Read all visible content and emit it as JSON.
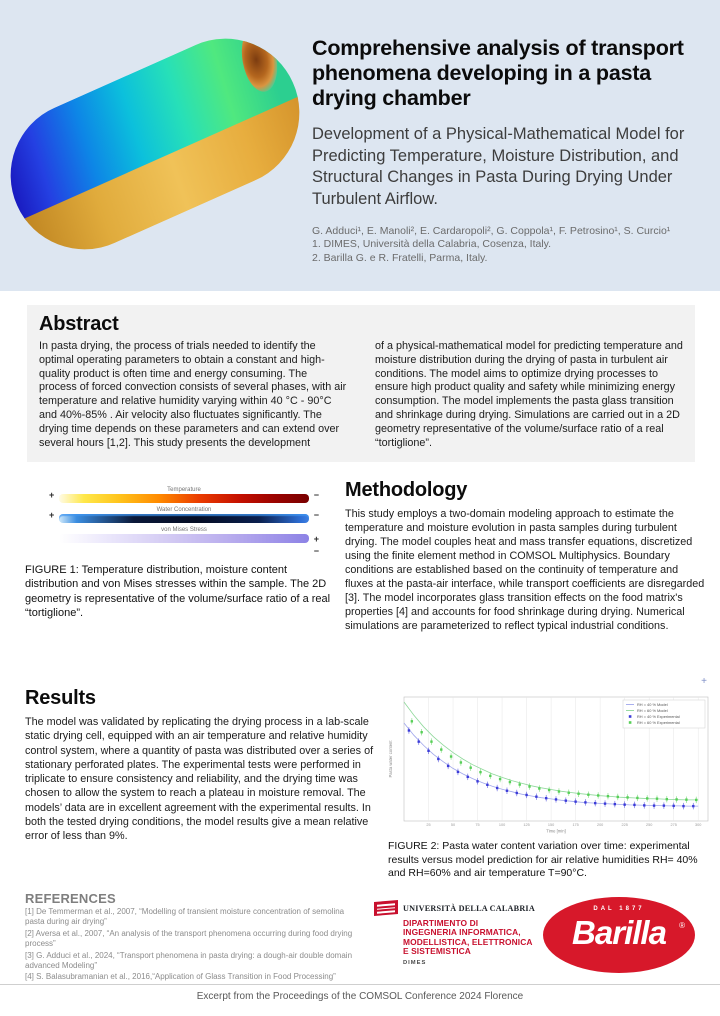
{
  "header": {
    "title": "Comprehensive analysis of transport phenomena developing in a pasta drying chamber",
    "subtitle": "Development of a Physical-Mathematical Model for Predicting Temperature, Moisture Distribution, and Structural Changes in Pasta During Drying Under Turbulent Airflow.",
    "authors": "G. Adduci¹, E. Manoli², E. Cardaropoli², G. Coppola¹, F. Petrosino¹, S. Curcio¹",
    "affiliation1": "1. DIMES, Università della Calabria, Cosenza, Italy.",
    "affiliation2": "2. Barilla G. e R. Fratelli, Parma, Italy."
  },
  "abstract": {
    "heading": "Abstract",
    "col1": "In pasta drying, the process of trials needed to identify the optimal operating parameters to obtain a constant and high-quality product is often time and energy consuming. The process of forced convection consists of several phases, with air temperature and relative humidity varying within 40 °C - 90°C and 40%-85% . Air velocity also fluctuates significantly. The drying time depends on these parameters and can extend over several hours [1,2]. This study presents the development",
    "col2": "of a physical-mathematical model for predicting temperature and moisture distribution during the drying of pasta in turbulent air conditions. The model aims to optimize drying processes to ensure high product quality and safety while minimizing energy consumption. The model implements the pasta glass transition and shrinkage during drying. Simulations are carried out in a 2D geometry representative of the volume/surface ratio of a real “tortiglione”."
  },
  "figure1": {
    "plus": "+",
    "minus": "−",
    "bars": [
      {
        "label": "Temperature"
      },
      {
        "label": "Water Concentration"
      },
      {
        "label": "von Mises Stress"
      }
    ],
    "caption": "FIGURE 1: Temperature distribution, moisture content distribution and von Mises stresses within the sample. The 2D geometry is representative of the volume/surface ratio of a real “tortiglione”."
  },
  "methodology": {
    "heading": "Methodology",
    "body": "This study employs a two-domain modeling approach to estimate the temperature and moisture evolution in pasta samples during turbulent drying. The model couples heat and mass transfer equations, discretized using the finite element method in COMSOL Multiphysics. Boundary conditions are established based on the continuity of temperature and fluxes at the pasta-air interface, while transport coefficients are disregarded [3]. The model incorporates glass transition effects on the food matrix's properties [4] and accounts for food shrinkage during drying. Numerical simulations are parameterized to reflect typical industrial conditions."
  },
  "results": {
    "heading": "Results",
    "body": "The model was validated by replicating the drying process in a lab-scale static drying cell, equipped with an air temperature and relative humidity control system, where a quantity of pasta was distributed over a series of stationary perforated plates. The experimental tests were performed in triplicate to ensure consistency and reliability, and the drying time was chosen to allow the system to reach a plateau in moisture removal. The models’ data are in excellent agreement with the experimental results. In both the tested drying conditions, the model results give a mean relative error of less than 9%."
  },
  "figure2": {
    "zoom_icon": "+",
    "caption": "FIGURE 2:  Pasta water content variation over time: experimental results versus model prediction for air relative humidities RH= 40% and RH=60% and air temperature T=90°C."
  },
  "chart_data": {
    "type": "scatter",
    "title": "",
    "xlabel": "Time [min]",
    "ylabel": "Pasta water content",
    "xlim": [
      0,
      310
    ],
    "ylim": [
      0.05,
      0.55
    ],
    "x_ticks": [
      25,
      50,
      75,
      100,
      125,
      150,
      175,
      200,
      225,
      250,
      275,
      300
    ],
    "grid": "vertical",
    "legend_position": "top-right",
    "series": [
      {
        "name": "RH = 40 % Model",
        "type": "line",
        "color": "#a0a6ec",
        "x": [
          0,
          10,
          20,
          30,
          40,
          50,
          60,
          70,
          80,
          90,
          100,
          110,
          120,
          130,
          140,
          150,
          160,
          170,
          180,
          190,
          200,
          210,
          220,
          230,
          240,
          250,
          260,
          270,
          280,
          290,
          300
        ],
        "y": [
          0.445,
          0.396,
          0.355,
          0.319,
          0.289,
          0.262,
          0.24,
          0.221,
          0.204,
          0.19,
          0.178,
          0.168,
          0.158,
          0.151,
          0.144,
          0.139,
          0.134,
          0.13,
          0.126,
          0.123,
          0.121,
          0.119,
          0.117,
          0.115,
          0.114,
          0.113,
          0.112,
          0.111,
          0.111,
          0.11,
          0.11
        ]
      },
      {
        "name": "RH = 60 % Model",
        "type": "line",
        "color": "#8ed89a",
        "x": [
          0,
          10,
          20,
          30,
          40,
          50,
          60,
          70,
          80,
          90,
          100,
          110,
          120,
          130,
          140,
          150,
          160,
          170,
          180,
          190,
          200,
          210,
          220,
          230,
          240,
          250,
          260,
          270,
          280,
          290,
          300
        ],
        "y": [
          0.53,
          0.477,
          0.43,
          0.39,
          0.356,
          0.326,
          0.3,
          0.277,
          0.258,
          0.24,
          0.226,
          0.213,
          0.202,
          0.192,
          0.184,
          0.177,
          0.17,
          0.165,
          0.16,
          0.156,
          0.152,
          0.149,
          0.146,
          0.144,
          0.142,
          0.14,
          0.139,
          0.137,
          0.136,
          0.135,
          0.135
        ]
      },
      {
        "name": "RH = 40 % Experimental",
        "type": "scatter",
        "color": "#3b3bd8",
        "error": 0.013,
        "x": [
          5,
          15,
          25,
          35,
          45,
          55,
          65,
          75,
          85,
          95,
          105,
          115,
          125,
          135,
          145,
          155,
          165,
          175,
          185,
          195,
          205,
          215,
          225,
          235,
          245,
          255,
          265,
          275,
          285,
          295
        ],
        "y": [
          0.415,
          0.37,
          0.333,
          0.3,
          0.272,
          0.248,
          0.228,
          0.21,
          0.196,
          0.183,
          0.172,
          0.163,
          0.155,
          0.148,
          0.142,
          0.137,
          0.132,
          0.128,
          0.125,
          0.122,
          0.12,
          0.118,
          0.116,
          0.115,
          0.113,
          0.112,
          0.112,
          0.111,
          0.11,
          0.11
        ]
      },
      {
        "name": "RH = 60 % Experimental",
        "type": "scatter",
        "color": "#57cf57",
        "error": 0.013,
        "x": [
          8,
          18,
          28,
          38,
          48,
          58,
          68,
          78,
          88,
          98,
          108,
          118,
          128,
          138,
          148,
          158,
          168,
          178,
          188,
          198,
          208,
          218,
          228,
          238,
          248,
          258,
          268,
          278,
          288,
          298
        ],
        "y": [
          0.452,
          0.408,
          0.37,
          0.338,
          0.31,
          0.286,
          0.265,
          0.247,
          0.232,
          0.219,
          0.207,
          0.197,
          0.189,
          0.181,
          0.175,
          0.169,
          0.164,
          0.16,
          0.156,
          0.153,
          0.15,
          0.147,
          0.145,
          0.143,
          0.141,
          0.14,
          0.138,
          0.137,
          0.136,
          0.135
        ]
      }
    ]
  },
  "references": {
    "heading": "REFERENCES",
    "items": [
      "[1] De Temmerman et al., 2007,  “Modelling of transient moisture concentration of semolina pasta during air drying”",
      "[2] Aversa et al., 2007, “An analysis of the transport phenomena occurring during food drying process”",
      "[3] G. Adduci et al., 2024, “Transport phenomena in pasta drying: a dough-air double domain advanced Modeling”",
      "[4] S. Balasubramanian et al., 2016,“Application of Glass Transition in Food Processing”"
    ]
  },
  "logos": {
    "unical": {
      "name": "UNIVERSITÀ DELLA CALABRIA",
      "dept_lines": [
        "DIPARTIMENTO DI",
        "INGEGNERIA INFORMATICA,",
        "MODELLISTICA, ELETTRONICA",
        "E SISTEMISTICA"
      ],
      "sub": "DIMES"
    },
    "barilla": {
      "top": "DAL 1877",
      "name": "Barilla",
      "reg": "®"
    }
  },
  "footer": {
    "text": "Excerpt from the Proceedings of the COMSOL Conference 2024 Florence"
  },
  "colors": {
    "header_bg": "#dde6f1",
    "abstract_bg": "#f2f2f2",
    "unical_red": "#c8102e",
    "barilla_red": "#d7182a",
    "series_blue": "#3b3bd8",
    "series_green": "#57cf57"
  }
}
